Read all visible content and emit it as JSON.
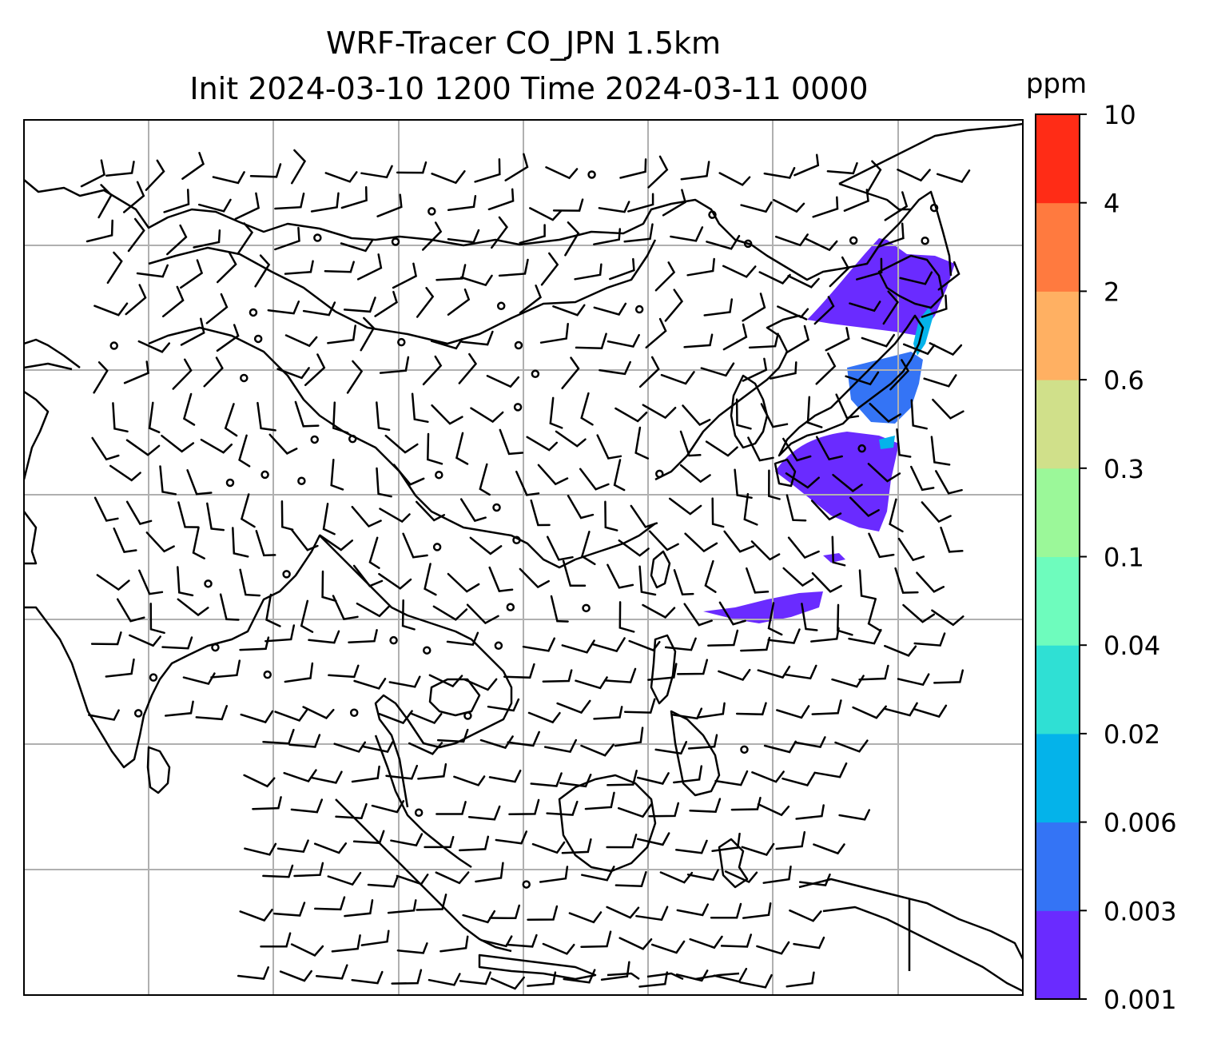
{
  "title_line1": "WRF-Tracer CO_JPN 1.5km",
  "title_line2": "Init 2024-03-10 1200 Time 2024-03-11 0000",
  "colorbar": {
    "unit": "ppm",
    "ticks": [
      "10",
      "4",
      "2",
      "0.6",
      "0.3",
      "0.1",
      "0.04",
      "0.02",
      "0.006",
      "0.003",
      "0.001"
    ],
    "colors": [
      "#6a2bff",
      "#3474f5",
      "#04b3ea",
      "#2fe0d4",
      "#6efcbd",
      "#9bf899",
      "#d0e08a",
      "#ffb062",
      "#ff7a3f",
      "#ff2c16"
    ]
  },
  "map_colors": {
    "coast": "#000000",
    "grid": "#b0b0b0",
    "tracer_low": "#6a2bff",
    "tracer_mid": "#3474f5",
    "tracer_high": "#04b3ea"
  }
}
